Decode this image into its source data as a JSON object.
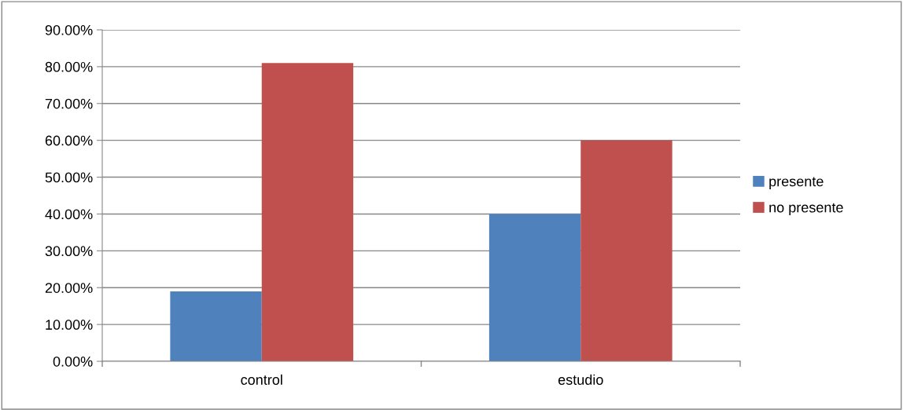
{
  "chart_data": {
    "type": "bar",
    "categories": [
      "control",
      "estudio"
    ],
    "series": [
      {
        "name": "presente",
        "color": "#4f81bd",
        "values": [
          19,
          40
        ]
      },
      {
        "name": "no presente",
        "color": "#c0504d",
        "values": [
          81,
          60
        ]
      }
    ],
    "ylim": [
      0,
      90
    ],
    "yticks": [
      {
        "value": 0,
        "label": "0.00%"
      },
      {
        "value": 10,
        "label": "10.00%"
      },
      {
        "value": 20,
        "label": "20.00%"
      },
      {
        "value": 30,
        "label": "30.00%"
      },
      {
        "value": 40,
        "label": "40.00%"
      },
      {
        "value": 50,
        "label": "50.00%"
      },
      {
        "value": 60,
        "label": "60.00%"
      },
      {
        "value": 70,
        "label": "70.00%"
      },
      {
        "value": 80,
        "label": "80.00%"
      },
      {
        "value": 90,
        "label": "90.00%"
      }
    ],
    "grid": "y",
    "legend": "right"
  }
}
